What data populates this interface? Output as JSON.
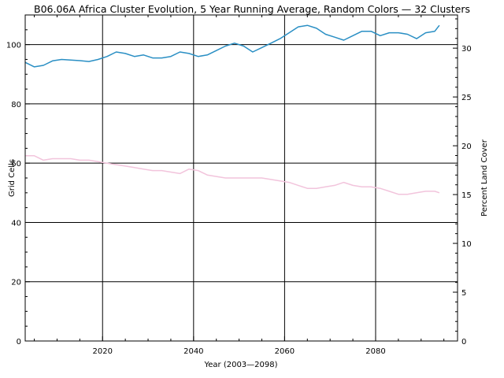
{
  "chart_data": {
    "type": "line",
    "title": "B06.06A Africa Cluster Evolution, 5 Year Running Average, Random Colors — 32 Clusters",
    "xlabel": "Year (2003—2098)",
    "ylabel": "Grid Cells",
    "y2label": "Percent Land Cover",
    "xlim": [
      2003,
      2098
    ],
    "ylim": [
      0,
      110
    ],
    "y2lim": [
      0,
      33.4
    ],
    "x_ticks": [
      2020,
      2040,
      2060,
      2080
    ],
    "y_ticks": [
      0,
      20,
      40,
      60,
      80,
      100
    ],
    "y2_ticks": [
      0,
      5,
      10,
      15,
      20,
      25,
      30
    ],
    "grid": true,
    "legend": "none",
    "series": [
      {
        "color": "#2a8fc4",
        "x": [
          2003,
          2005,
          2007,
          2009,
          2011,
          2013,
          2015,
          2017,
          2019,
          2021,
          2023,
          2025,
          2027,
          2029,
          2031,
          2033,
          2035,
          2037,
          2039,
          2041,
          2043,
          2045,
          2047,
          2049,
          2051,
          2053,
          2055,
          2057,
          2059,
          2061,
          2063,
          2065,
          2067,
          2069,
          2071,
          2073,
          2075,
          2077,
          2079,
          2081,
          2083,
          2085,
          2087,
          2089,
          2091,
          2093,
          2094
        ],
        "values": [
          94,
          92.5,
          93,
          94.5,
          95,
          94.8,
          94.6,
          94.3,
          95,
          96,
          97.5,
          97,
          96,
          96.5,
          95.5,
          95.5,
          96,
          97.5,
          97,
          96,
          96.5,
          98,
          99.5,
          100.5,
          99.5,
          97.5,
          99,
          100.5,
          102,
          104,
          106,
          106.5,
          105.5,
          103.5,
          102.5,
          101.5,
          103,
          104.5,
          104.5,
          103,
          104,
          104,
          103.5,
          102,
          104,
          104.5,
          106.5
        ]
      },
      {
        "color": "#f2c4dc",
        "x": [
          2003,
          2005,
          2007,
          2009,
          2011,
          2013,
          2015,
          2017,
          2019,
          2021,
          2023,
          2025,
          2027,
          2029,
          2031,
          2033,
          2035,
          2037,
          2039,
          2041,
          2043,
          2045,
          2047,
          2049,
          2051,
          2053,
          2055,
          2057,
          2059,
          2061,
          2063,
          2065,
          2067,
          2069,
          2071,
          2073,
          2075,
          2077,
          2079,
          2081,
          2083,
          2085,
          2087,
          2089,
          2091,
          2093,
          2094
        ],
        "values": [
          62.5,
          62.5,
          61,
          61.5,
          61.5,
          61.5,
          61,
          61,
          60.5,
          60,
          59.5,
          59,
          58.5,
          58,
          57.5,
          57.5,
          57,
          56.5,
          58,
          57.5,
          56,
          55.5,
          55,
          55,
          55,
          55,
          55,
          54.5,
          54,
          53.5,
          52.5,
          51.5,
          51.5,
          52,
          52.5,
          53.5,
          52.5,
          52,
          52,
          51.5,
          50.5,
          49.5,
          49.5,
          50,
          50.5,
          50.5,
          50
        ]
      }
    ]
  }
}
